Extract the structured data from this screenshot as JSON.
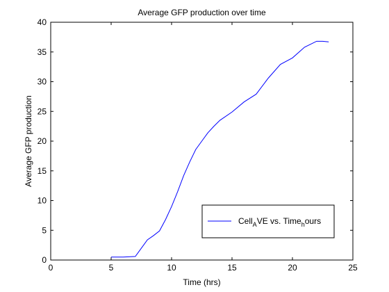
{
  "chart_data": {
    "type": "line",
    "title": "Average GFP production over time",
    "xlabel": "Time (hrs)",
    "ylabel": "Average GFP production",
    "xlim": [
      0,
      25
    ],
    "ylim": [
      0,
      40
    ],
    "xticks": [
      0,
      5,
      10,
      15,
      20,
      25
    ],
    "yticks": [
      0,
      5,
      10,
      15,
      20,
      25,
      30,
      35,
      40
    ],
    "grid": false,
    "legend_position": "bottom-right",
    "series": [
      {
        "name": "Cell_AVE vs. Time_hours",
        "legend_parts": {
          "base1": "Cell",
          "sub1": "A",
          "base2": "VE vs. Time",
          "sub2": "h",
          "base3": "ours"
        },
        "color": "#0000ff",
        "x": [
          5,
          6,
          7,
          7.5,
          8,
          8.5,
          9,
          9.5,
          10,
          10.5,
          11,
          11.5,
          12,
          12.5,
          13,
          13.5,
          14,
          15,
          16,
          17,
          18,
          19,
          20,
          21,
          22,
          22.5,
          23
        ],
        "y": [
          0.5,
          0.5,
          0.6,
          2.0,
          3.4,
          4.1,
          4.9,
          6.8,
          9.0,
          11.5,
          14.2,
          16.5,
          18.6,
          20.0,
          21.4,
          22.5,
          23.5,
          24.9,
          26.6,
          27.9,
          30.6,
          32.9,
          34.0,
          35.8,
          36.8,
          36.8,
          36.7
        ]
      }
    ]
  }
}
